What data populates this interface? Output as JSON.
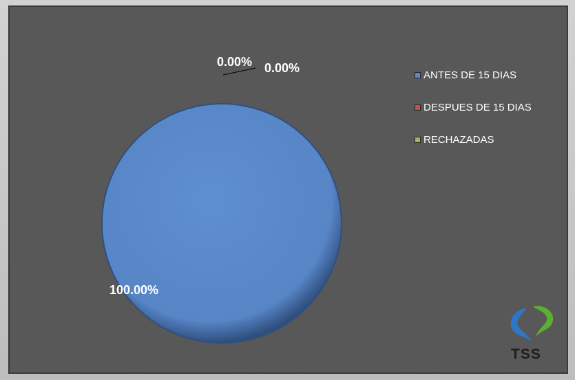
{
  "chart_data": {
    "type": "pie",
    "categories": [
      "ANTES DE 15 DIAS",
      "DESPUES DE 15 DIAS",
      "RECHAZADAS"
    ],
    "values": [
      100.0,
      0.0,
      0.0
    ],
    "data_labels": [
      "100.00%",
      "0.00%",
      "0.00%"
    ],
    "colors": [
      "#5a8acb",
      "#c0504d",
      "#9bbb59"
    ],
    "legend_position": "right",
    "title": ""
  },
  "logo": {
    "text": "TSS",
    "colors": [
      "#2e77c8",
      "#5bb030"
    ]
  }
}
